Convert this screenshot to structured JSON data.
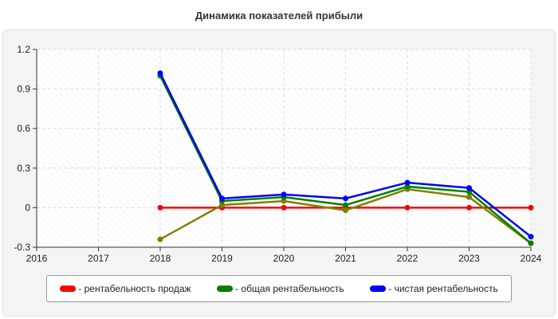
{
  "chart_data": {
    "type": "line",
    "title": "Динамика показателей прибыли",
    "x": [
      2016,
      2017,
      2018,
      2019,
      2020,
      2021,
      2022,
      2023,
      2024
    ],
    "xlim": [
      2016,
      2024
    ],
    "ylim": [
      -0.3,
      1.2
    ],
    "yticks": [
      "-0.3",
      "0",
      "0.3",
      "0.6",
      "0.9",
      "1.2"
    ],
    "ytick_values": [
      -0.3,
      0,
      0.3,
      0.6,
      0.9,
      1.2
    ],
    "xticks": [
      "2016",
      "2017",
      "2018",
      "2019",
      "2020",
      "2021",
      "2022",
      "2023",
      "2024"
    ],
    "grid": true,
    "legend_position": "bottom",
    "series": [
      {
        "name": "- рентабельность продаж",
        "color": "#ff0000",
        "x": [
          2018,
          2019,
          2020,
          2021,
          2022,
          2023,
          2024
        ],
        "values": [
          0,
          0,
          0,
          0,
          0,
          0,
          0
        ]
      },
      {
        "name": "",
        "color": "#808000",
        "x": [
          2018,
          2019,
          2020,
          2021,
          2022,
          2023,
          2024
        ],
        "values": [
          -0.24,
          0.02,
          0.05,
          -0.02,
          0.14,
          0.08,
          -0.27
        ]
      },
      {
        "name": "- общая рентабельность",
        "color": "#008000",
        "x": [
          2018,
          2019,
          2020,
          2021,
          2022,
          2023,
          2024
        ],
        "values": [
          1.0,
          0.05,
          0.08,
          0.02,
          0.16,
          0.12,
          -0.27
        ]
      },
      {
        "name": "- чистая рентабельность",
        "color": "#0000ff",
        "x": [
          2018,
          2019,
          2020,
          2021,
          2022,
          2023,
          2024
        ],
        "values": [
          1.02,
          0.07,
          0.1,
          0.07,
          0.19,
          0.15,
          -0.22
        ]
      }
    ]
  }
}
